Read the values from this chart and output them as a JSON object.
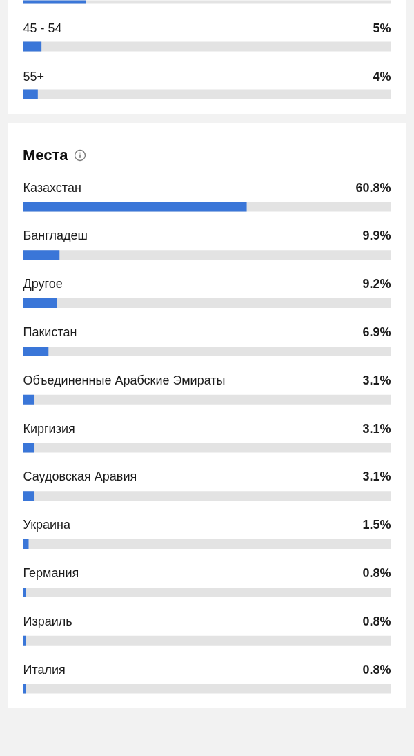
{
  "chart_data": [
    {
      "type": "bar",
      "orientation": "horizontal",
      "categories": [
        null,
        "45 - 54",
        "55+"
      ],
      "values": [
        17,
        5,
        4
      ],
      "value_labels": [
        null,
        "5%",
        "4%"
      ],
      "color": "#3a76d8",
      "xlim": [
        0,
        100
      ],
      "tick_labels": false
    },
    {
      "type": "bar",
      "orientation": "horizontal",
      "title": "Места",
      "categories": [
        "Казахстан",
        "Бангладеш",
        "Другое",
        "Пакистан",
        "Объединенные Арабские Эмираты",
        "Киргизия",
        "Саудовская Аравия",
        "Украина",
        "Германия",
        "Израиль",
        "Италия"
      ],
      "values": [
        60.8,
        9.9,
        9.2,
        6.9,
        3.1,
        3.1,
        3.1,
        1.5,
        0.8,
        0.8,
        0.8
      ],
      "value_labels": [
        "60.8%",
        "9.9%",
        "9.2%",
        "6.9%",
        "3.1%",
        "3.1%",
        "3.1%",
        "1.5%",
        "0.8%",
        "0.8%",
        "0.8%"
      ],
      "color": "#3a76d8",
      "xlim": [
        0,
        100
      ],
      "tick_labels": false
    }
  ]
}
